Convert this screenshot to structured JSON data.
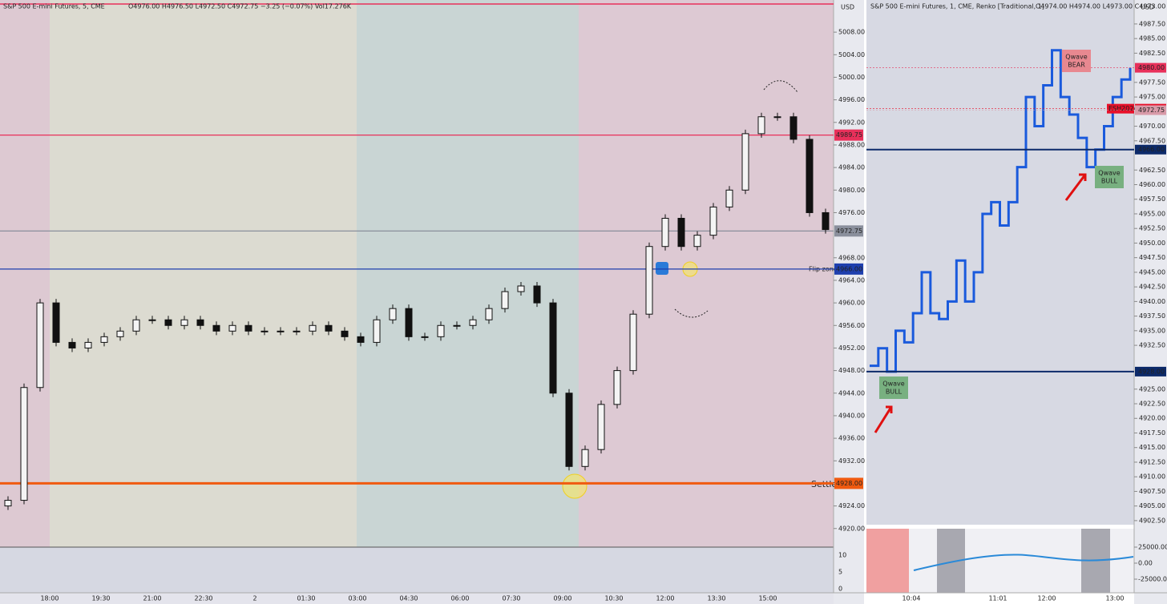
{
  "left": {
    "symbol": "S&P 500 E-mini Futures, 5, CME",
    "ohlc": "O4976.00 H4976.50 L4972.50 C4972.75 −3.25 (−0.07%) Vol17.276K",
    "currency": "USD",
    "ylim": [
      4916.7,
      5013.7
    ],
    "yticks": [
      {
        "value": 5008,
        "label": "5008.00"
      },
      {
        "value": 5004,
        "label": "5004.00"
      },
      {
        "value": 5000,
        "label": "5000.00"
      },
      {
        "value": 4996,
        "label": "4996.00"
      },
      {
        "value": 4992,
        "label": "4992.00"
      },
      {
        "value": 4988,
        "label": "4988.00"
      },
      {
        "value": 4984,
        "label": "4984.00"
      },
      {
        "value": 4980,
        "label": "4980.00"
      },
      {
        "value": 4976,
        "label": "4976.00"
      },
      {
        "value": 4968,
        "label": "4968.00"
      },
      {
        "value": 4964,
        "label": "4964.00"
      },
      {
        "value": 4960,
        "label": "4960.00"
      },
      {
        "value": 4956,
        "label": "4956.00"
      },
      {
        "value": 4952,
        "label": "4952.00"
      },
      {
        "value": 4948,
        "label": "4948.00"
      },
      {
        "value": 4944,
        "label": "4944.00"
      },
      {
        "value": 4940,
        "label": "4940.00"
      },
      {
        "value": 4936,
        "label": "4936.00"
      },
      {
        "value": 4932,
        "label": "4932.00"
      },
      {
        "value": 4924,
        "label": "4924.00"
      },
      {
        "value": 4920,
        "label": "4920.00"
      }
    ],
    "markers": [
      {
        "value": 4989.75,
        "label": "4989.75",
        "color": "#e8305a"
      },
      {
        "value": 4972.75,
        "label": "4972.75",
        "color": "#8a8f9c"
      },
      {
        "value": 4966,
        "label": "4966.00",
        "color": "#1e3fae"
      },
      {
        "value": 4928,
        "label": "4928.00",
        "color": "#f05a10"
      }
    ],
    "flip_zone": "Flip zone",
    "settle": "Settle",
    "closes": [
      4925,
      4945,
      4960,
      4953,
      4952,
      4953,
      4954,
      4955,
      4957,
      4957,
      4956,
      4957,
      4956,
      4955,
      4956,
      4955,
      4955,
      4955,
      4955,
      4956,
      4955,
      4954,
      4953,
      4957,
      4959,
      4954,
      4954,
      4956,
      4956,
      4957,
      4959,
      4962,
      4963,
      4960,
      4944,
      4931,
      4934,
      4942,
      4948,
      4958,
      4970,
      4975,
      4970,
      4972,
      4977,
      4980,
      4990,
      4993,
      4993,
      4989,
      4976,
      4973
    ],
    "volume_ticks": [
      10,
      5,
      0
    ],
    "time_labels": [
      "18:00",
      "19:30",
      "21:00",
      "22:30",
      "2",
      "01:30",
      "03:00",
      "04:30",
      "06:00",
      "07:30",
      "09:00",
      "10:30",
      "12:00",
      "13:30",
      "15:00"
    ]
  },
  "right": {
    "symbol": "S&P 500 E-mini Futures, 1, CME, Renko [Traditional, 1]",
    "ohlc": "O4974.00 H4974.00 L4973.00 C4973.00",
    "currency": "USD",
    "ylim": [
      4901.8,
      4991.6
    ],
    "yticks": [
      {
        "value": 4987.5,
        "label": "4987.50"
      },
      {
        "value": 4985,
        "label": "4985.00"
      },
      {
        "value": 4982.5,
        "label": "4982.50"
      },
      {
        "value": 4977.5,
        "label": "4977.50"
      },
      {
        "value": 4975,
        "label": "4975.00"
      },
      {
        "value": 4970,
        "label": "4970.00"
      },
      {
        "value": 4967.5,
        "label": "4967.50"
      },
      {
        "value": 4962.5,
        "label": "4962.50"
      },
      {
        "value": 4960,
        "label": "4960.00"
      },
      {
        "value": 4957.5,
        "label": "4957.50"
      },
      {
        "value": 4955,
        "label": "4955.00"
      },
      {
        "value": 4952.5,
        "label": "4952.50"
      },
      {
        "value": 4950,
        "label": "4950.00"
      },
      {
        "value": 4947.5,
        "label": "4947.50"
      },
      {
        "value": 4945,
        "label": "4945.00"
      },
      {
        "value": 4942.5,
        "label": "4942.50"
      },
      {
        "value": 4940,
        "label": "4940.00"
      },
      {
        "value": 4937.5,
        "label": "4937.50"
      },
      {
        "value": 4935,
        "label": "4935.00"
      },
      {
        "value": 4932.5,
        "label": "4932.50"
      },
      {
        "value": 4925,
        "label": "4925.00"
      },
      {
        "value": 4922.5,
        "label": "4922.50"
      },
      {
        "value": 4920,
        "label": "4920.00"
      },
      {
        "value": 4917.5,
        "label": "4917.50"
      },
      {
        "value": 4915,
        "label": "4915.00"
      },
      {
        "value": 4912.5,
        "label": "4912.50"
      },
      {
        "value": 4910,
        "label": "4910.00"
      },
      {
        "value": 4907.5,
        "label": "4907.50"
      },
      {
        "value": 4905,
        "label": "4905.00"
      },
      {
        "value": 4902.5,
        "label": "4902.50"
      }
    ],
    "markers": [
      {
        "value": 4980,
        "label": "4980.00",
        "color": "#e8305a"
      },
      {
        "value": 4973,
        "label": "4973.00",
        "tag": "ESH2024",
        "color": "#e8102a"
      },
      {
        "value": 4972.75,
        "label": "4972.75",
        "color": "#d89aa8"
      },
      {
        "value": 4966,
        "label": "4966.00",
        "color": "#0c2a6a"
      },
      {
        "value": 4928,
        "label": "4928.00",
        "color": "#0c2a6a"
      }
    ],
    "renko": [
      4929,
      4932,
      4928,
      4935,
      4933,
      4938,
      4945,
      4938,
      4937,
      4940,
      4947,
      4940,
      4945,
      4955,
      4957,
      4953,
      4957,
      4963,
      4975,
      4970,
      4977,
      4983,
      4975,
      4972,
      4968,
      4963,
      4966,
      4970,
      4975,
      4978,
      4980
    ],
    "signals": [
      {
        "line1": "Qwave",
        "line2": "BEAR"
      },
      {
        "line1": "Qwave",
        "line2": "BULL"
      },
      {
        "line1": "Qwave",
        "line2": "BULL"
      }
    ],
    "osc_ticks": [
      {
        "value": 25000,
        "label": "25000.00"
      },
      {
        "value": 0,
        "label": "0.00"
      },
      {
        "value": -25000,
        "label": "-25000.00"
      }
    ],
    "time_labels": [
      "10:04",
      "11:01",
      "12:00",
      "13:00"
    ]
  }
}
